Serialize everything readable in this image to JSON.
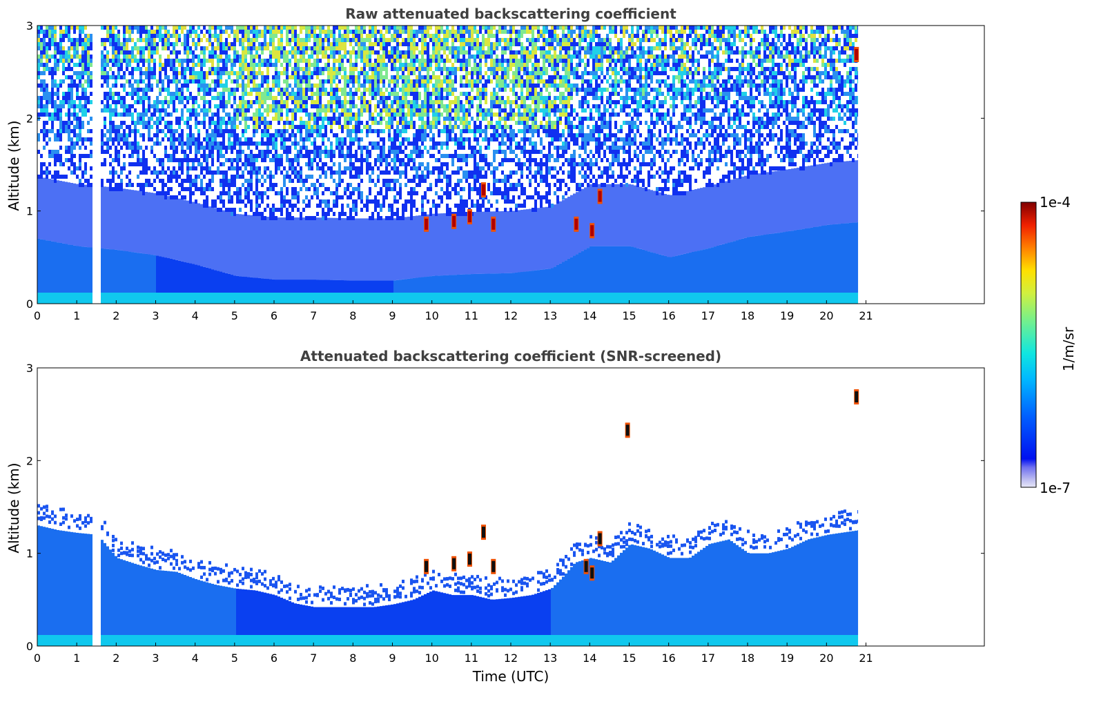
{
  "chart_data": [
    {
      "type": "heatmap",
      "title": "Raw attenuated backscattering coefficient",
      "xlabel": "",
      "ylabel": "Altitude (km)",
      "xlim": [
        0,
        24
      ],
      "ylim": [
        0,
        3
      ],
      "xticks": [
        "0",
        "1",
        "2",
        "3",
        "4",
        "5",
        "6",
        "7",
        "8",
        "9",
        "10",
        "11",
        "12",
        "13",
        "14",
        "15",
        "16",
        "17",
        "18",
        "19",
        "20",
        "21"
      ],
      "yticks": [
        "0",
        "1",
        "2",
        "3"
      ],
      "data_end_time": 20.8,
      "gap": [
        1.45,
        1.57
      ],
      "aerosol_layer_top_km": [
        [
          0,
          0.7
        ],
        [
          1,
          0.62
        ],
        [
          2,
          0.58
        ],
        [
          3,
          0.52
        ],
        [
          4,
          0.42
        ],
        [
          5,
          0.3
        ],
        [
          6,
          0.26
        ],
        [
          7,
          0.26
        ],
        [
          8,
          0.25
        ],
        [
          9,
          0.25
        ],
        [
          10,
          0.3
        ],
        [
          11,
          0.32
        ],
        [
          12,
          0.33
        ],
        [
          13,
          0.38
        ],
        [
          14,
          0.62
        ],
        [
          15,
          0.62
        ],
        [
          16,
          0.5
        ],
        [
          17,
          0.6
        ],
        [
          18,
          0.72
        ],
        [
          19,
          0.78
        ],
        [
          20,
          0.85
        ],
        [
          20.8,
          0.88
        ]
      ],
      "high_value_patches": [
        {
          "t": 9.85,
          "z": 0.85
        },
        {
          "t": 10.55,
          "z": 0.88
        },
        {
          "t": 10.95,
          "z": 0.93
        },
        {
          "t": 11.3,
          "z": 1.22
        },
        {
          "t": 11.55,
          "z": 0.85
        },
        {
          "t": 13.65,
          "z": 0.85
        },
        {
          "t": 14.05,
          "z": 0.78
        },
        {
          "t": 14.25,
          "z": 1.15
        },
        {
          "t": 20.75,
          "z": 2.68
        }
      ]
    },
    {
      "type": "heatmap",
      "title": "Attenuated backscattering coefficient (SNR-screened)",
      "xlabel": "Time (UTC)",
      "ylabel": "Altitude (km)",
      "xlim": [
        0,
        24
      ],
      "ylim": [
        0,
        3
      ],
      "xticks": [
        "0",
        "1",
        "2",
        "3",
        "4",
        "5",
        "6",
        "7",
        "8",
        "9",
        "10",
        "11",
        "12",
        "13",
        "14",
        "15",
        "16",
        "17",
        "18",
        "19",
        "20",
        "21"
      ],
      "yticks": [
        "0",
        "1",
        "2",
        "3"
      ],
      "data_end_time": 20.8,
      "gap": [
        1.45,
        1.57
      ],
      "screened_top_km": [
        [
          0,
          1.3
        ],
        [
          0.5,
          1.25
        ],
        [
          1,
          1.22
        ],
        [
          1.5,
          1.2
        ],
        [
          2,
          0.95
        ],
        [
          2.5,
          0.88
        ],
        [
          3,
          0.82
        ],
        [
          3.5,
          0.8
        ],
        [
          4,
          0.72
        ],
        [
          4.5,
          0.66
        ],
        [
          5,
          0.62
        ],
        [
          5.5,
          0.6
        ],
        [
          6,
          0.55
        ],
        [
          6.5,
          0.46
        ],
        [
          7,
          0.42
        ],
        [
          7.5,
          0.42
        ],
        [
          8,
          0.42
        ],
        [
          8.5,
          0.42
        ],
        [
          9,
          0.45
        ],
        [
          9.5,
          0.5
        ],
        [
          10,
          0.6
        ],
        [
          10.5,
          0.55
        ],
        [
          11,
          0.55
        ],
        [
          11.5,
          0.5
        ],
        [
          12,
          0.52
        ],
        [
          12.5,
          0.55
        ],
        [
          13,
          0.62
        ],
        [
          13.3,
          0.75
        ],
        [
          13.6,
          0.9
        ],
        [
          14,
          0.95
        ],
        [
          14.5,
          0.9
        ],
        [
          15,
          1.1
        ],
        [
          15.5,
          1.05
        ],
        [
          16,
          0.95
        ],
        [
          16.5,
          0.95
        ],
        [
          17,
          1.1
        ],
        [
          17.5,
          1.15
        ],
        [
          18,
          1.0
        ],
        [
          18.5,
          1.0
        ],
        [
          19,
          1.05
        ],
        [
          19.5,
          1.15
        ],
        [
          20,
          1.2
        ],
        [
          20.8,
          1.25
        ]
      ],
      "high_value_patches": [
        {
          "t": 9.85,
          "z": 0.85
        },
        {
          "t": 10.55,
          "z": 0.88
        },
        {
          "t": 10.95,
          "z": 0.93
        },
        {
          "t": 11.3,
          "z": 1.22
        },
        {
          "t": 11.55,
          "z": 0.85
        },
        {
          "t": 13.9,
          "z": 0.85
        },
        {
          "t": 14.05,
          "z": 0.78
        },
        {
          "t": 14.25,
          "z": 1.15
        },
        {
          "t": 14.95,
          "z": 2.32
        },
        {
          "t": 20.75,
          "z": 2.68
        }
      ]
    }
  ],
  "colorbar": {
    "label": "1/m/sr",
    "max_label": "1e-4",
    "min_label": "1e-7",
    "colormap": "jet",
    "scale": "log"
  },
  "colors": {
    "title_color": "#404040",
    "low_blue": "#0022ee",
    "mid_blue": "#1a6ef0",
    "cyan": "#18d4ee",
    "peak_red": "#b00000"
  }
}
